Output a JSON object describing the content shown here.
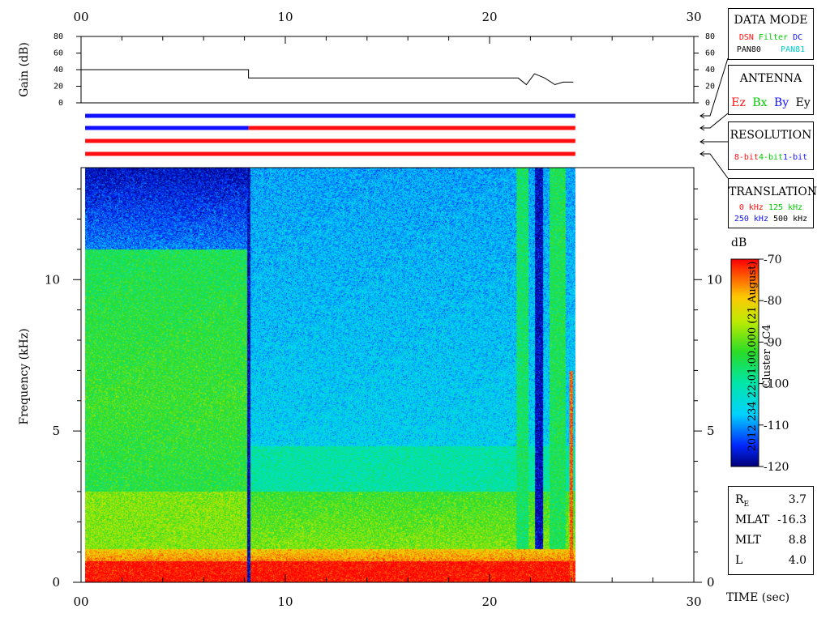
{
  "colors": {
    "low": "#00007a",
    "high": "#ff0000",
    "blue": "#1010ff",
    "red": "#ff1010",
    "green": "#00cc00",
    "cyan": "#00cccc"
  },
  "data_mode": {
    "title": "DATA MODE",
    "items": [
      {
        "label": "DSN",
        "color": "#ff1010"
      },
      {
        "label": "Filter",
        "color": "#00cc00"
      },
      {
        "label": "DC",
        "color": "#1010ff"
      },
      {
        "label": "PAN80",
        "color": "#000000"
      },
      {
        "label": "PAN81",
        "color": "#00cccc"
      }
    ]
  },
  "antenna": {
    "title": "ANTENNA",
    "items": [
      {
        "label": "Ez",
        "color": "#ff1010"
      },
      {
        "label": "Bx",
        "color": "#00cc00"
      },
      {
        "label": "By",
        "color": "#1010ff"
      },
      {
        "label": "Ey",
        "color": "#000000"
      }
    ]
  },
  "resolution": {
    "title": "RESOLUTION",
    "items": [
      {
        "label": "8-bit",
        "color": "#ff1010"
      },
      {
        "label": "4-bit",
        "color": "#00cc00"
      },
      {
        "label": "1-bit",
        "color": "#1010ff"
      }
    ]
  },
  "translation": {
    "title": "TRANSLATION",
    "items": [
      {
        "label": "0 kHz",
        "color": "#ff1010"
      },
      {
        "label": "125 kHz",
        "color": "#00cc00"
      },
      {
        "label": "250 kHz",
        "color": "#1010ff"
      },
      {
        "label": "500 kHz",
        "color": "#000000"
      }
    ]
  },
  "colorbar": {
    "unit": "dB",
    "ticks": [
      "-70",
      "-80",
      "-90",
      "-100",
      "-110",
      "-120"
    ],
    "range": [
      -120,
      -70
    ]
  },
  "side_title": {
    "line1": "2012 234 22:01:00.000 (21 August)",
    "line2": "Cluster - C4"
  },
  "info": [
    {
      "label": "RE",
      "value": "3.7"
    },
    {
      "label": "MLAT",
      "value": "-16.3"
    },
    {
      "label": "MLT",
      "value": "8.8"
    },
    {
      "label": "L",
      "value": "4.0"
    }
  ],
  "chart_data": [
    {
      "type": "line",
      "ylabel": "Gain (dB)",
      "ylim": [
        0,
        80
      ],
      "yticks": [
        "0",
        "20",
        "40",
        "60",
        "80"
      ],
      "xlim": [
        0,
        30
      ],
      "xticks": [
        "00",
        "10",
        "20",
        "30"
      ],
      "series": [
        {
          "x": [
            0,
            8.2,
            8.2,
            21.4,
            21.8,
            22.2,
            22.7,
            23.2,
            23.6,
            24.1
          ],
          "y": [
            40,
            40,
            30,
            30,
            22,
            35,
            30,
            22,
            25,
            25
          ]
        }
      ]
    },
    {
      "type": "bar",
      "segments_by_row": [
        [
          {
            "from": 0.2,
            "to": 24.2,
            "color": "#1010ff"
          }
        ],
        [
          {
            "from": 0.2,
            "to": 8.2,
            "color": "#1010ff"
          },
          {
            "from": 8.2,
            "to": 24.2,
            "color": "#ff1010"
          }
        ],
        [
          {
            "from": 0.2,
            "to": 24.2,
            "color": "#ff1010"
          }
        ],
        [
          {
            "from": 0.2,
            "to": 24.2,
            "color": "#ff1010"
          }
        ]
      ]
    },
    {
      "type": "heatmap",
      "xlabel": "TIME (sec)",
      "ylabel": "Frequency (kHz)",
      "xlim": [
        0,
        30
      ],
      "ylim": [
        0,
        13.7
      ],
      "xticks": [
        "00",
        "10",
        "20",
        "30"
      ],
      "yticks": [
        "0",
        "5",
        "10"
      ],
      "data_extent": [
        0.2,
        24.2
      ],
      "clim": [
        -120,
        -70
      ],
      "transition": 8.2
    }
  ]
}
